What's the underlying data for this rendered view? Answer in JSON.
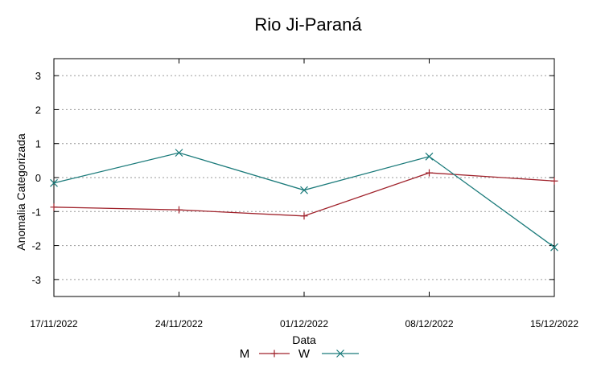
{
  "chart_data": {
    "type": "line",
    "title": "Rio Ji-Paraná",
    "xlabel": "Data",
    "ylabel": "Anomalia Categorizada",
    "categories": [
      "17/11/2022",
      "24/11/2022",
      "01/12/2022",
      "08/12/2022",
      "15/12/2022"
    ],
    "yticks": [
      3,
      2,
      1,
      0,
      -1,
      -2,
      -3
    ],
    "ylim": [
      -3.5,
      3.5
    ],
    "grid": true,
    "legend_position": "bottom-center",
    "series": [
      {
        "name": "M",
        "values": [
          -0.87,
          -0.95,
          -1.13,
          0.14,
          -0.1
        ],
        "color": "#a0232c",
        "marker": "plus"
      },
      {
        "name": "W",
        "values": [
          -0.16,
          0.73,
          -0.37,
          0.62,
          -2.05
        ],
        "color": "#1a7a7a",
        "marker": "x"
      }
    ]
  }
}
